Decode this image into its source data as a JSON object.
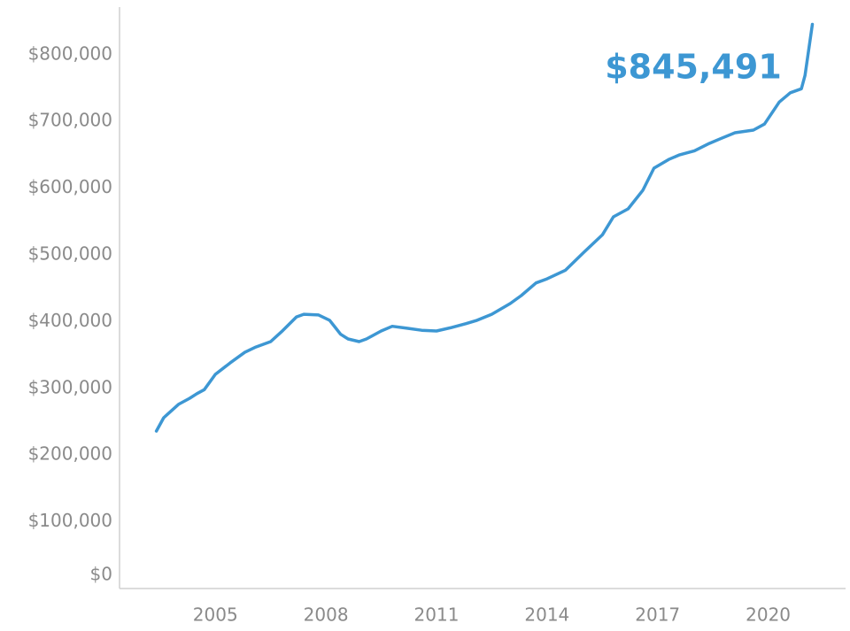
{
  "chart_data": {
    "type": "line",
    "annotation": "$845,491",
    "x": [
      2003.4,
      2003.6,
      2003.7,
      2004.0,
      2004.3,
      2004.5,
      2004.7,
      2005.0,
      2005.4,
      2005.8,
      2006.1,
      2006.5,
      2006.8,
      2007.2,
      2007.4,
      2007.8,
      2008.1,
      2008.4,
      2008.6,
      2008.9,
      2009.1,
      2009.5,
      2009.8,
      2010.2,
      2010.6,
      2011.0,
      2011.4,
      2011.8,
      2012.1,
      2012.5,
      2013.0,
      2013.3,
      2013.7,
      2014.0,
      2014.5,
      2015.0,
      2015.5,
      2015.8,
      2016.2,
      2016.6,
      2016.9,
      2017.3,
      2017.6,
      2018.0,
      2018.4,
      2018.7,
      2019.1,
      2019.6,
      2019.9,
      2020.3,
      2020.6,
      2020.9,
      2021.0,
      2021.2
    ],
    "series": [
      {
        "color": "#3d97d3",
        "values": [
          236000,
          256000,
          261000,
          276000,
          285000,
          292000,
          298000,
          321000,
          338000,
          354000,
          362000,
          370000,
          385000,
          407000,
          411000,
          410000,
          402000,
          381000,
          374000,
          370000,
          374000,
          386000,
          393000,
          390000,
          387000,
          386000,
          391000,
          397000,
          402000,
          411000,
          427000,
          439000,
          458000,
          464000,
          477000,
          504000,
          530000,
          557000,
          569000,
          597000,
          630000,
          643000,
          650000,
          656000,
          667000,
          674000,
          683000,
          687000,
          696000,
          729000,
          743000,
          749000,
          769000,
          845491
        ]
      }
    ],
    "xlim": [
      2002.4,
      2022.1
    ],
    "xticks": [
      2005,
      2008,
      2011,
      2014,
      2017,
      2020
    ],
    "ylim": [
      0,
      870000
    ],
    "yticks": [
      {
        "value": 0,
        "label": "$0"
      },
      {
        "value": 100000,
        "label": "$100,000"
      },
      {
        "value": 200000,
        "label": "$200,000"
      },
      {
        "value": 300000,
        "label": "$300,000"
      },
      {
        "value": 400000,
        "label": "$400,000"
      },
      {
        "value": 500000,
        "label": "$500,000"
      },
      {
        "value": 600000,
        "label": "$600,000"
      },
      {
        "value": 700000,
        "label": "$700,000"
      },
      {
        "value": 800000,
        "label": "$800,000"
      }
    ],
    "grid": false
  }
}
